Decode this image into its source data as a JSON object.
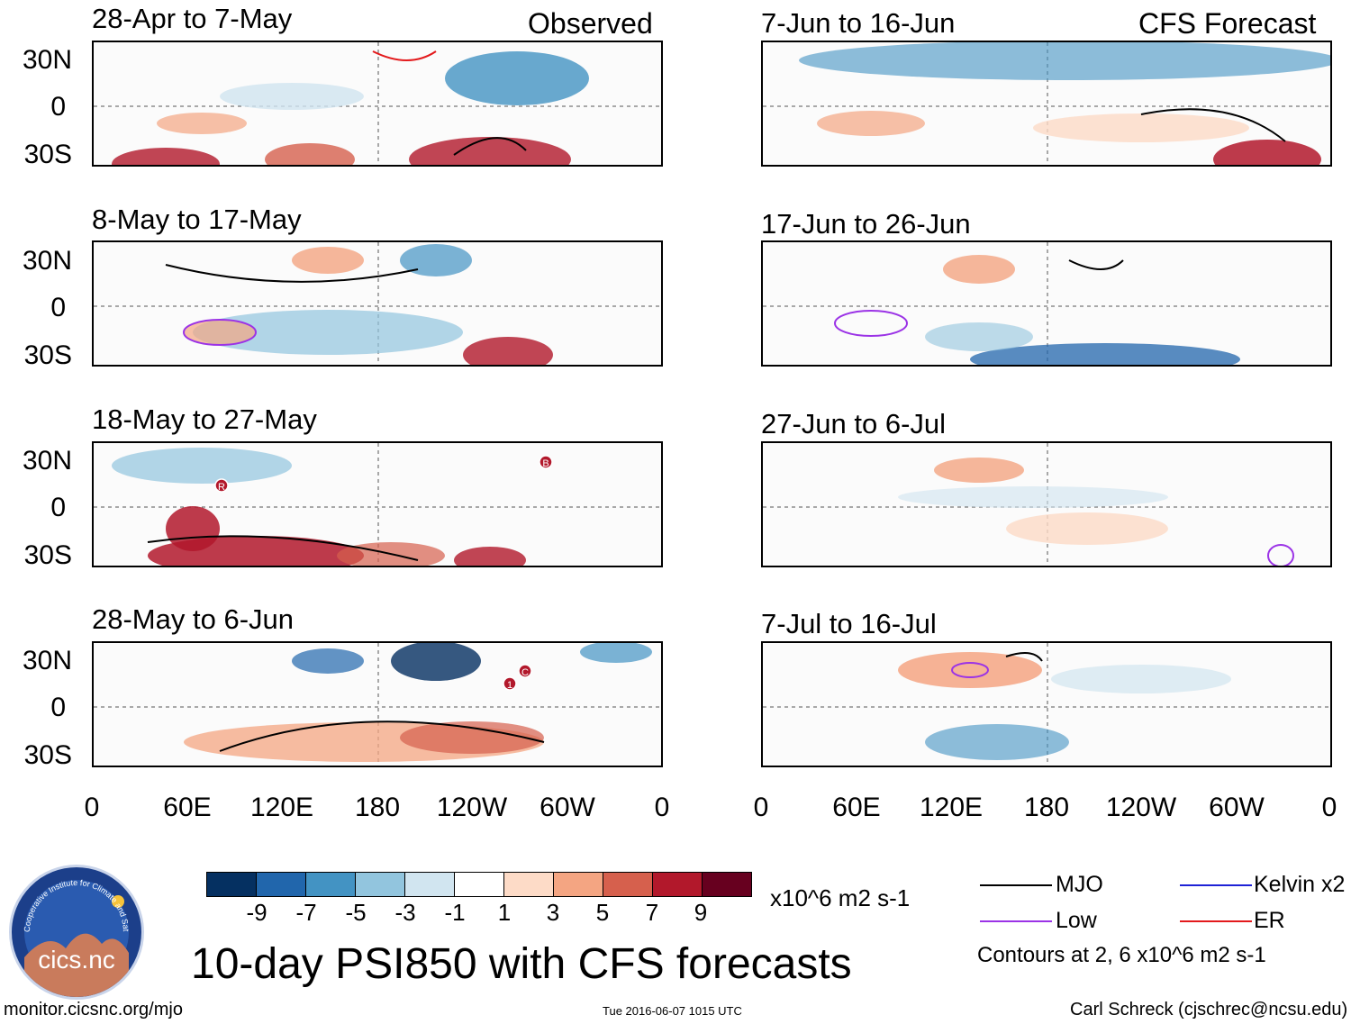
{
  "observed_label": "Observed",
  "forecast_label": "CFS Forecast",
  "observed_panels": [
    {
      "period": "28-Apr to 7-May"
    },
    {
      "period": "8-May to 17-May"
    },
    {
      "period": "18-May to 27-May"
    },
    {
      "period": "28-May to 6-Jun"
    }
  ],
  "forecast_panels": [
    {
      "period": "7-Jun to 16-Jun"
    },
    {
      "period": "17-Jun to 26-Jun"
    },
    {
      "period": "27-Jun to 6-Jul"
    },
    {
      "period": "7-Jul to 16-Jul"
    }
  ],
  "lat_labels": [
    "30N",
    "0",
    "30S"
  ],
  "lon_labels": [
    "0",
    "60E",
    "120E",
    "180",
    "120W",
    "60W",
    "0"
  ],
  "colorbar": {
    "ticks": [
      "-9",
      "-7",
      "-5",
      "-3",
      "-1",
      "1",
      "3",
      "5",
      "7",
      "9"
    ],
    "colors": [
      "#053061",
      "#2166ac",
      "#4393c3",
      "#92c5de",
      "#d1e5f0",
      "#ffffff",
      "#fddbc7",
      "#f4a582",
      "#d6604d",
      "#b2182b",
      "#67001f"
    ],
    "units": "x10^6 m2 s-1"
  },
  "legend": {
    "mjo": "MJO",
    "kelvin": "Kelvin x2",
    "low": "Low",
    "er": "ER",
    "colors": {
      "mjo": "#000000",
      "kelvin": "#1e22d6",
      "low": "#9b33e6",
      "er": "#e31a1c"
    },
    "contours_note": "Contours at 2, 6 x10^6 m2 s-1"
  },
  "main_title": "10-day PSI850 with CFS forecasts",
  "site_url": "monitor.cicsnc.org/mjo",
  "timestamp": "Tue 2016-06-07 1015 UTC",
  "author": "Carl Schreck (cjschrec@ncsu.edu)",
  "logo": {
    "text": "cics.nc",
    "ring_text": "Cooperative Institute for Climate and Satellites"
  },
  "storm_markers": {
    "panel3": [
      "R",
      "B"
    ],
    "panel4": [
      "1",
      "C"
    ]
  }
}
